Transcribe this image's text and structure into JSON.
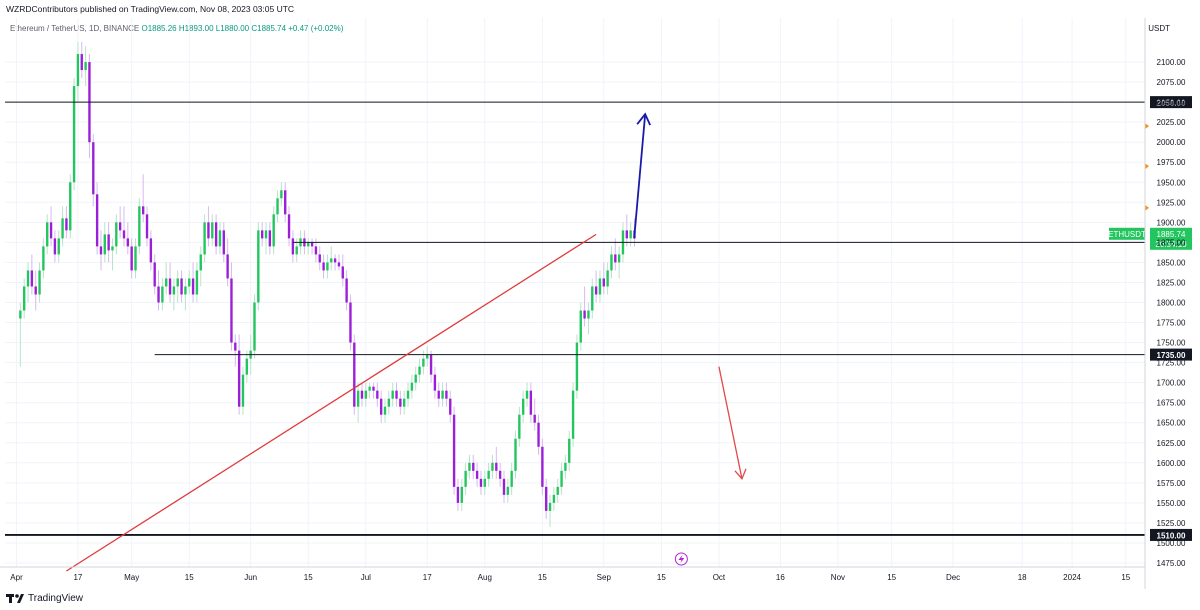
{
  "header": {
    "published": "WZRDContributors published on TradingView.com, Nov 08, 2023 03:05 UTC"
  },
  "legend": {
    "symbol": "Ethereum / TetherUS, 1D, BINANCE",
    "ohlc": "O1885.26 H1893.00 L1880.00 C1885.74 +0.47 (+0.02%)"
  },
  "footer": {
    "brand": "TradingView"
  },
  "colors": {
    "up": "#22c55e",
    "down": "#9b1fd9",
    "trend": "#e03a3a",
    "level": "#131722",
    "arrow_up": "#1a1aa8",
    "arrow_down": "#e24848",
    "accent": "#f7931a"
  },
  "chart_data": {
    "type": "candlestick",
    "symbol": "ETHUSDT",
    "price_unit": "USDT",
    "y_axis_ticks": [
      2100,
      2075,
      2050,
      2025,
      2000,
      1975,
      1950,
      1925,
      1900,
      1875,
      1850,
      1825,
      1800,
      1775,
      1750,
      1725,
      1700,
      1675,
      1650,
      1625,
      1600,
      1575,
      1550,
      1525,
      1500,
      1475
    ],
    "y_axis_labels": [
      "2100.00",
      "2075.00",
      "2050.00",
      "2025.00",
      "2000.00",
      "1975.00",
      "1950.00",
      "1925.00",
      "1900.00",
      "1875.00",
      "1850.00",
      "1825.00",
      "1800.00",
      "1775.00",
      "1750.00",
      "1725.00",
      "1700.00",
      "1675.00",
      "1650.00",
      "1625.00",
      "1600.00",
      "1575.00",
      "1550.00",
      "1525.00",
      "1500.00",
      "1475.00"
    ],
    "ylim": [
      1470,
      2130
    ],
    "x_axis_labels": [
      "Apr",
      "17",
      "May",
      "15",
      "Jun",
      "15",
      "Jul",
      "17",
      "Aug",
      "15",
      "Sep",
      "15",
      "Oct",
      "16",
      "Nov",
      "15",
      "Dec",
      "18",
      "2024",
      "15"
    ],
    "x_axis_days": [
      0,
      16,
      30,
      45,
      61,
      76,
      91,
      107,
      122,
      137,
      153,
      168,
      183,
      199,
      214,
      228,
      244,
      262,
      275,
      289
    ],
    "x_range_days": [
      -3,
      294
    ],
    "x_origin_date": "2023-04-01",
    "candles_ohl_c": [
      [
        1,
        1780,
        1800,
        1720,
        1790
      ],
      [
        2,
        1790,
        1830,
        1780,
        1820
      ],
      [
        3,
        1820,
        1850,
        1800,
        1840
      ],
      [
        4,
        1840,
        1860,
        1810,
        1820
      ],
      [
        5,
        1820,
        1840,
        1790,
        1810
      ],
      [
        6,
        1810,
        1850,
        1800,
        1840
      ],
      [
        7,
        1840,
        1880,
        1830,
        1870
      ],
      [
        8,
        1870,
        1910,
        1860,
        1900
      ],
      [
        9,
        1900,
        1920,
        1870,
        1880
      ],
      [
        10,
        1880,
        1890,
        1850,
        1860
      ],
      [
        11,
        1860,
        1890,
        1850,
        1880
      ],
      [
        12,
        1880,
        1920,
        1870,
        1905
      ],
      [
        13,
        1905,
        1920,
        1880,
        1890
      ],
      [
        14,
        1890,
        1960,
        1880,
        1950
      ],
      [
        15,
        1950,
        2080,
        1940,
        2070
      ],
      [
        16,
        2070,
        2125,
        2050,
        2110
      ],
      [
        17,
        2110,
        2125,
        2080,
        2090
      ],
      [
        18,
        2090,
        2120,
        2070,
        2100
      ],
      [
        19,
        2100,
        2110,
        1980,
        2000
      ],
      [
        20,
        2000,
        2010,
        1920,
        1935
      ],
      [
        21,
        1935,
        1950,
        1860,
        1870
      ],
      [
        22,
        1870,
        1890,
        1840,
        1860
      ],
      [
        23,
        1860,
        1900,
        1850,
        1885
      ],
      [
        24,
        1885,
        1900,
        1850,
        1865
      ],
      [
        25,
        1865,
        1880,
        1840,
        1870
      ],
      [
        26,
        1870,
        1910,
        1860,
        1900
      ],
      [
        27,
        1900,
        1920,
        1880,
        1890
      ],
      [
        28,
        1890,
        1920,
        1870,
        1880
      ],
      [
        29,
        1880,
        1900,
        1860,
        1870
      ],
      [
        30,
        1870,
        1880,
        1830,
        1840
      ],
      [
        31,
        1840,
        1880,
        1830,
        1870
      ],
      [
        32,
        1870,
        1930,
        1860,
        1920
      ],
      [
        33,
        1920,
        1960,
        1900,
        1910
      ],
      [
        34,
        1910,
        1920,
        1870,
        1880
      ],
      [
        35,
        1880,
        1890,
        1840,
        1850
      ],
      [
        36,
        1850,
        1860,
        1810,
        1820
      ],
      [
        37,
        1820,
        1840,
        1790,
        1800
      ],
      [
        38,
        1800,
        1830,
        1790,
        1820
      ],
      [
        39,
        1820,
        1850,
        1810,
        1830
      ],
      [
        40,
        1830,
        1850,
        1800,
        1810
      ],
      [
        41,
        1810,
        1830,
        1790,
        1820
      ],
      [
        42,
        1820,
        1840,
        1800,
        1830
      ],
      [
        43,
        1830,
        1840,
        1800,
        1810
      ],
      [
        44,
        1810,
        1830,
        1790,
        1820
      ],
      [
        45,
        1820,
        1840,
        1810,
        1830
      ],
      [
        46,
        1830,
        1850,
        1800,
        1810
      ],
      [
        47,
        1810,
        1850,
        1800,
        1840
      ],
      [
        48,
        1840,
        1870,
        1820,
        1860
      ],
      [
        49,
        1860,
        1910,
        1850,
        1900
      ],
      [
        50,
        1900,
        1920,
        1870,
        1880
      ],
      [
        51,
        1880,
        1910,
        1870,
        1900
      ],
      [
        52,
        1900,
        1910,
        1860,
        1870
      ],
      [
        53,
        1870,
        1900,
        1860,
        1890
      ],
      [
        54,
        1890,
        1900,
        1850,
        1860
      ],
      [
        55,
        1860,
        1880,
        1820,
        1830
      ],
      [
        56,
        1830,
        1850,
        1740,
        1750
      ],
      [
        57,
        1750,
        1760,
        1720,
        1740
      ],
      [
        58,
        1740,
        1760,
        1660,
        1670
      ],
      [
        59,
        1670,
        1720,
        1660,
        1710
      ],
      [
        60,
        1710,
        1740,
        1700,
        1730
      ],
      [
        61,
        1730,
        1760,
        1710,
        1740
      ],
      [
        62,
        1740,
        1810,
        1730,
        1800
      ],
      [
        63,
        1800,
        1900,
        1790,
        1890
      ],
      [
        64,
        1890,
        1900,
        1870,
        1880
      ],
      [
        65,
        1880,
        1900,
        1860,
        1890
      ],
      [
        66,
        1890,
        1900,
        1860,
        1870
      ],
      [
        67,
        1870,
        1920,
        1860,
        1910
      ],
      [
        68,
        1910,
        1940,
        1900,
        1930
      ],
      [
        69,
        1930,
        1950,
        1920,
        1940
      ],
      [
        70,
        1940,
        1950,
        1900,
        1910
      ],
      [
        71,
        1910,
        1920,
        1870,
        1880
      ],
      [
        72,
        1880,
        1890,
        1850,
        1860
      ],
      [
        73,
        1860,
        1880,
        1850,
        1870
      ],
      [
        74,
        1870,
        1890,
        1860,
        1880
      ],
      [
        75,
        1880,
        1890,
        1860,
        1870
      ],
      [
        76,
        1870,
        1880,
        1860,
        1875
      ],
      [
        77,
        1875,
        1880,
        1860,
        1870
      ],
      [
        78,
        1870,
        1880,
        1850,
        1860
      ],
      [
        79,
        1860,
        1870,
        1840,
        1850
      ],
      [
        80,
        1850,
        1860,
        1830,
        1840
      ],
      [
        81,
        1840,
        1860,
        1830,
        1850
      ],
      [
        82,
        1850,
        1870,
        1840,
        1855
      ],
      [
        83,
        1855,
        1860,
        1840,
        1850
      ],
      [
        84,
        1850,
        1860,
        1840,
        1845
      ],
      [
        85,
        1845,
        1860,
        1820,
        1830
      ],
      [
        86,
        1830,
        1840,
        1790,
        1800
      ],
      [
        87,
        1800,
        1810,
        1740,
        1750
      ],
      [
        88,
        1750,
        1760,
        1660,
        1670
      ],
      [
        89,
        1670,
        1700,
        1650,
        1690
      ],
      [
        90,
        1690,
        1700,
        1670,
        1680
      ],
      [
        91,
        1680,
        1700,
        1670,
        1690
      ],
      [
        92,
        1690,
        1700,
        1680,
        1695
      ],
      [
        93,
        1695,
        1700,
        1680,
        1690
      ],
      [
        94,
        1690,
        1700,
        1670,
        1680
      ],
      [
        95,
        1680,
        1690,
        1650,
        1660
      ],
      [
        96,
        1660,
        1680,
        1650,
        1670
      ],
      [
        97,
        1670,
        1690,
        1660,
        1680
      ],
      [
        98,
        1680,
        1700,
        1670,
        1690
      ],
      [
        99,
        1690,
        1700,
        1670,
        1680
      ],
      [
        100,
        1680,
        1690,
        1660,
        1670
      ],
      [
        101,
        1670,
        1690,
        1660,
        1680
      ],
      [
        102,
        1680,
        1700,
        1670,
        1690
      ],
      [
        103,
        1690,
        1710,
        1680,
        1700
      ],
      [
        104,
        1700,
        1720,
        1690,
        1710
      ],
      [
        105,
        1710,
        1730,
        1700,
        1720
      ],
      [
        106,
        1720,
        1740,
        1710,
        1730
      ],
      [
        107,
        1730,
        1745,
        1720,
        1735
      ],
      [
        108,
        1735,
        1740,
        1700,
        1710
      ],
      [
        109,
        1710,
        1720,
        1680,
        1690
      ],
      [
        110,
        1690,
        1700,
        1670,
        1680
      ],
      [
        111,
        1680,
        1700,
        1670,
        1690
      ],
      [
        112,
        1690,
        1700,
        1670,
        1680
      ],
      [
        113,
        1680,
        1690,
        1650,
        1660
      ],
      [
        114,
        1660,
        1670,
        1560,
        1570
      ],
      [
        115,
        1570,
        1580,
        1540,
        1550
      ],
      [
        116,
        1550,
        1580,
        1540,
        1570
      ],
      [
        117,
        1570,
        1600,
        1560,
        1590
      ],
      [
        118,
        1590,
        1610,
        1580,
        1600
      ],
      [
        119,
        1600,
        1610,
        1580,
        1590
      ],
      [
        120,
        1590,
        1600,
        1570,
        1580
      ],
      [
        121,
        1580,
        1590,
        1560,
        1570
      ],
      [
        122,
        1570,
        1590,
        1560,
        1580
      ],
      [
        123,
        1580,
        1600,
        1570,
        1590
      ],
      [
        124,
        1590,
        1610,
        1580,
        1600
      ],
      [
        125,
        1600,
        1620,
        1580,
        1590
      ],
      [
        126,
        1590,
        1600,
        1570,
        1580
      ],
      [
        127,
        1580,
        1590,
        1550,
        1560
      ],
      [
        128,
        1560,
        1580,
        1550,
        1570
      ],
      [
        129,
        1570,
        1600,
        1560,
        1590
      ],
      [
        130,
        1590,
        1640,
        1580,
        1630
      ],
      [
        131,
        1630,
        1670,
        1620,
        1660
      ],
      [
        132,
        1660,
        1690,
        1650,
        1680
      ],
      [
        133,
        1680,
        1700,
        1670,
        1690
      ],
      [
        134,
        1690,
        1700,
        1650,
        1660
      ],
      [
        135,
        1660,
        1680,
        1640,
        1650
      ],
      [
        136,
        1650,
        1660,
        1610,
        1620
      ],
      [
        137,
        1620,
        1630,
        1560,
        1570
      ],
      [
        138,
        1570,
        1580,
        1530,
        1540
      ],
      [
        139,
        1540,
        1560,
        1520,
        1550
      ],
      [
        140,
        1550,
        1570,
        1540,
        1560
      ],
      [
        141,
        1560,
        1580,
        1550,
        1570
      ],
      [
        142,
        1570,
        1600,
        1560,
        1590
      ],
      [
        143,
        1590,
        1610,
        1580,
        1600
      ],
      [
        144,
        1600,
        1640,
        1590,
        1630
      ],
      [
        145,
        1630,
        1700,
        1620,
        1690
      ],
      [
        146,
        1690,
        1760,
        1680,
        1750
      ],
      [
        147,
        1750,
        1800,
        1740,
        1790
      ],
      [
        148,
        1790,
        1820,
        1770,
        1780
      ],
      [
        149,
        1780,
        1800,
        1760,
        1790
      ],
      [
        150,
        1790,
        1830,
        1780,
        1820
      ],
      [
        151,
        1820,
        1840,
        1800,
        1810
      ],
      [
        152,
        1810,
        1840,
        1800,
        1830
      ],
      [
        153,
        1830,
        1850,
        1810,
        1820
      ],
      [
        154,
        1820,
        1850,
        1810,
        1840
      ],
      [
        155,
        1840,
        1870,
        1830,
        1860
      ],
      [
        156,
        1860,
        1880,
        1840,
        1850
      ],
      [
        157,
        1850,
        1870,
        1830,
        1860
      ],
      [
        158,
        1860,
        1900,
        1850,
        1890
      ],
      [
        159,
        1890,
        1910,
        1870,
        1880
      ],
      [
        160,
        1880,
        1900,
        1870,
        1890
      ],
      [
        161,
        1890,
        1905,
        1870,
        1880
      ]
    ],
    "horizontal_levels": [
      {
        "price": 2050,
        "label": "2050.00"
      },
      {
        "price": 1875,
        "label": "1875.00"
      },
      {
        "price": 1735,
        "label": "1735.00"
      },
      {
        "price": 1510,
        "label": "1510.00"
      }
    ],
    "last_price": {
      "symbol": "ETHUSDT",
      "price": 1885.74,
      "label": "1885.74",
      "countdown": "20:54:10"
    },
    "annotations": [
      "arrow-up",
      "arrow-down",
      "trendline"
    ]
  }
}
